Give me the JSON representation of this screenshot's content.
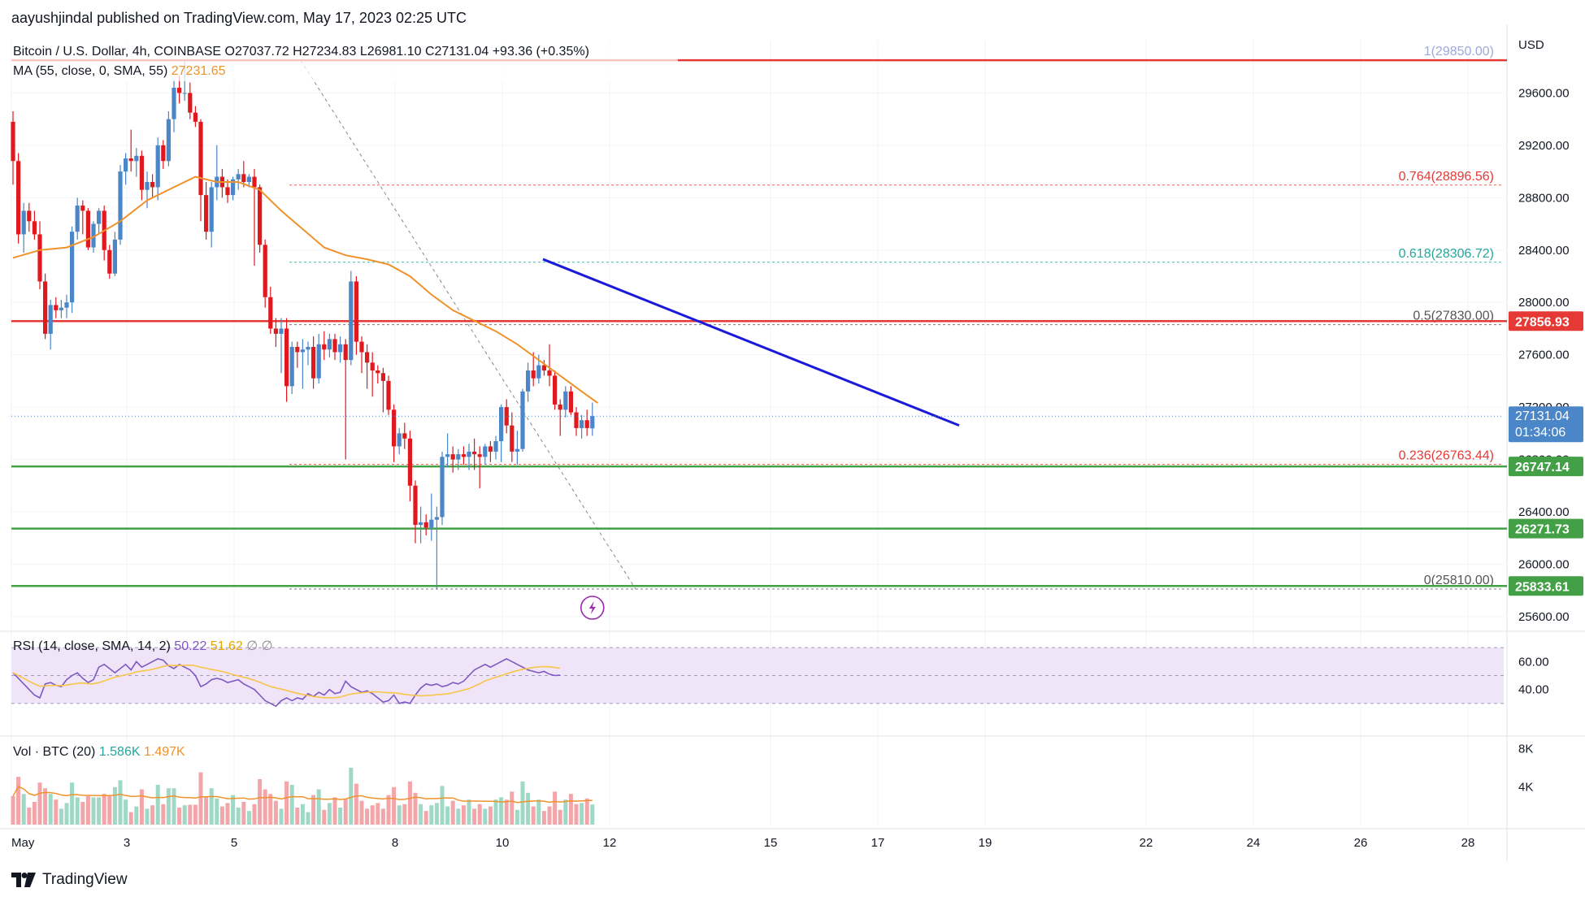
{
  "header": {
    "published": "aayushjindal published on TradingView.com, May 17, 2023 02:25 UTC"
  },
  "brand": {
    "name": "TradingView",
    "icon": "tradingview-logo-icon"
  },
  "symbol": {
    "title": "Bitcoin / U.S. Dollar, 4h, COINBASE",
    "ohlc": "O27037.72  H27234.83  L26981.10  C27131.04  +93.36 (+0.35%)",
    "currency": "USD"
  },
  "indicators": {
    "ma": {
      "label": "MA (55, close, 0, SMA, 55)",
      "value": "27231.65",
      "color": "#f0922b"
    },
    "rsi": {
      "label": "RSI (14, close, SMA, 14, 2)",
      "value": "50.22",
      "sma_value": "51.62",
      "extra": "∅  ∅",
      "color": "#7e57c2",
      "sma_color": "#f7c548"
    },
    "vol": {
      "label": "Vol · BTC (20)",
      "value": "1.586K",
      "ma_value": "1.497K"
    }
  },
  "price_axis": {
    "ticks": [
      "29600.00",
      "29200.00",
      "28800.00",
      "28400.00",
      "28000.00",
      "27600.00",
      "27200.00",
      "26800.00",
      "26400.00",
      "26000.00",
      "25600.00"
    ],
    "current_price": "27131.04",
    "countdown": "01:34:06"
  },
  "rsi_axis": {
    "ticks": [
      "60.00",
      "40.00"
    ]
  },
  "vol_axis": {
    "ticks": [
      "8K",
      "4K"
    ]
  },
  "time_axis": {
    "labels": [
      "May",
      "3",
      "5",
      "8",
      "10",
      "12",
      "15",
      "17",
      "19",
      "22",
      "24",
      "26",
      "28"
    ]
  },
  "levels": {
    "resistance": [
      {
        "price": 29850,
        "color": "#e53935"
      },
      {
        "price": 27856.93,
        "label": "27856.93",
        "color": "#e53935"
      }
    ],
    "support": [
      {
        "price": 26747.14,
        "label": "26747.14",
        "color": "#43a047"
      },
      {
        "price": 26271.73,
        "label": "26271.73",
        "color": "#43a047"
      },
      {
        "price": 25833.61,
        "label": "25833.61",
        "color": "#43a047"
      }
    ]
  },
  "fibonacci": [
    {
      "label": "1(29850.00)",
      "price": 29850,
      "color": "#9fa8da"
    },
    {
      "label": "0.764(28896.56)",
      "price": 28896.56,
      "color": "#e53935"
    },
    {
      "label": "0.618(28306.72)",
      "price": 28306.72,
      "color": "#26a69a"
    },
    {
      "label": "0.5(27830.00)",
      "price": 27830,
      "color": "#555555"
    },
    {
      "label": "0.236(26763.44)",
      "price": 26763.44,
      "color": "#e53935"
    },
    {
      "label": "0(25810.00)",
      "price": 25810,
      "color": "#555555"
    }
  ],
  "colors": {
    "up": "#4a86c8",
    "down": "#e0191f",
    "trendline": "#1a1ad8",
    "rsi_band": "#f0e4f9"
  },
  "chart_data": {
    "type": "candlestick",
    "timeframe": "4h",
    "x_range": [
      "2023-05-01",
      "2023-05-28"
    ],
    "ylim": [
      25500,
      30000
    ],
    "candles": [
      [
        29380,
        29460,
        28900,
        29080
      ],
      [
        29080,
        29140,
        28450,
        28520
      ],
      [
        28520,
        28760,
        28380,
        28700
      ],
      [
        28700,
        28760,
        28540,
        28620
      ],
      [
        28620,
        28700,
        28480,
        28520
      ],
      [
        28520,
        28620,
        28100,
        28160
      ],
      [
        28160,
        28220,
        27720,
        27760
      ],
      [
        27760,
        28020,
        27640,
        27980
      ],
      [
        27980,
        28040,
        27880,
        27940
      ],
      [
        27940,
        28020,
        27880,
        27960
      ],
      [
        27960,
        28060,
        27880,
        28000
      ],
      [
        28000,
        28580,
        27920,
        28540
      ],
      [
        28540,
        28800,
        28480,
        28740
      ],
      [
        28740,
        28780,
        28520,
        28700
      ],
      [
        28700,
        28720,
        28400,
        28420
      ],
      [
        28420,
        28620,
        28380,
        28600
      ],
      [
        28600,
        28720,
        28520,
        28700
      ],
      [
        28700,
        28740,
        28320,
        28400
      ],
      [
        28400,
        28440,
        28180,
        28220
      ],
      [
        28220,
        28540,
        28200,
        28480
      ],
      [
        28480,
        29050,
        28440,
        29000
      ],
      [
        29000,
        29140,
        28900,
        29100
      ],
      [
        29100,
        29320,
        29000,
        29080
      ],
      [
        29080,
        29180,
        28960,
        29120
      ],
      [
        29120,
        29160,
        28780,
        28860
      ],
      [
        28860,
        29000,
        28720,
        28920
      ],
      [
        28920,
        28980,
        28800,
        28880
      ],
      [
        28880,
        29260,
        28780,
        29200
      ],
      [
        29200,
        29240,
        29020,
        29080
      ],
      [
        29080,
        29460,
        29040,
        29400
      ],
      [
        29400,
        29700,
        29300,
        29640
      ],
      [
        29640,
        29730,
        29520,
        29600
      ],
      [
        29600,
        29850,
        29540,
        29600
      ],
      [
        29600,
        29680,
        29400,
        29450
      ],
      [
        29450,
        29500,
        29340,
        29380
      ],
      [
        29380,
        29400,
        28620,
        28820
      ],
      [
        28820,
        28920,
        28480,
        28540
      ],
      [
        28540,
        28920,
        28420,
        28880
      ],
      [
        28880,
        29200,
        28780,
        28960
      ],
      [
        28960,
        29020,
        28800,
        28880
      ],
      [
        28880,
        28940,
        28760,
        28820
      ],
      [
        28820,
        28960,
        28780,
        28940
      ],
      [
        28940,
        29020,
        28860,
        28980
      ],
      [
        28980,
        29080,
        28880,
        28920
      ],
      [
        28920,
        28980,
        28880,
        28960
      ],
      [
        28960,
        29020,
        28280,
        28880
      ],
      [
        28880,
        28900,
        28380,
        28440
      ],
      [
        28440,
        28480,
        27960,
        28040
      ],
      [
        28040,
        28120,
        27760,
        27800
      ],
      [
        27800,
        27880,
        27660,
        27760
      ],
      [
        27760,
        27880,
        27460,
        27800
      ],
      [
        27800,
        27880,
        27240,
        27360
      ],
      [
        27360,
        27700,
        27300,
        27660
      ],
      [
        27660,
        27700,
        27500,
        27620
      ],
      [
        27620,
        27720,
        27340,
        27640
      ],
      [
        27640,
        27700,
        27520,
        27660
      ],
      [
        27660,
        27740,
        27340,
        27420
      ],
      [
        27420,
        27760,
        27380,
        27680
      ],
      [
        27680,
        27780,
        27560,
        27640
      ],
      [
        27640,
        27760,
        27580,
        27720
      ],
      [
        27720,
        27760,
        27560,
        27620
      ],
      [
        27620,
        27740,
        27540,
        27680
      ],
      [
        27680,
        27720,
        26800,
        27560
      ],
      [
        27560,
        28240,
        27520,
        28160
      ],
      [
        28160,
        28200,
        27600,
        27700
      ],
      [
        27700,
        27740,
        27460,
        27620
      ],
      [
        27620,
        27680,
        27340,
        27540
      ],
      [
        27540,
        27620,
        27280,
        27480
      ],
      [
        27480,
        27520,
        27380,
        27460
      ],
      [
        27460,
        27500,
        27160,
        27400
      ],
      [
        27400,
        27440,
        27140,
        27180
      ],
      [
        27180,
        27220,
        26780,
        26900
      ],
      [
        26900,
        27040,
        26840,
        27000
      ],
      [
        27000,
        27080,
        26880,
        26960
      ],
      [
        26960,
        27020,
        26480,
        26600
      ],
      [
        26600,
        26640,
        26160,
        26300
      ],
      [
        26300,
        26440,
        26160,
        26320
      ],
      [
        26320,
        26380,
        26220,
        26280
      ],
      [
        26280,
        26540,
        26180,
        26340
      ],
      [
        26340,
        26440,
        25810,
        26360
      ],
      [
        26360,
        26860,
        26300,
        26820
      ],
      [
        26820,
        27000,
        26740,
        26840
      ],
      [
        26840,
        26900,
        26700,
        26800
      ],
      [
        26800,
        26880,
        26720,
        26840
      ],
      [
        26840,
        26900,
        26760,
        26820
      ],
      [
        26820,
        26920,
        26720,
        26860
      ],
      [
        26860,
        26960,
        26720,
        26840
      ],
      [
        26840,
        26900,
        26580,
        26820
      ],
      [
        26820,
        26920,
        26760,
        26900
      ],
      [
        26900,
        26940,
        26780,
        26860
      ],
      [
        26860,
        26980,
        26800,
        26940
      ],
      [
        26940,
        27220,
        26780,
        27200
      ],
      [
        27200,
        27260,
        27000,
        27060
      ],
      [
        27060,
        27160,
        26780,
        26860
      ],
      [
        26860,
        27020,
        26760,
        26880
      ],
      [
        26880,
        27340,
        26860,
        27320
      ],
      [
        27320,
        27540,
        27240,
        27480
      ],
      [
        27480,
        27620,
        27360,
        27420
      ],
      [
        27420,
        27600,
        27380,
        27520
      ],
      [
        27520,
        27560,
        27440,
        27480
      ],
      [
        27480,
        27680,
        27360,
        27440
      ],
      [
        27440,
        27480,
        27180,
        27220
      ],
      [
        27220,
        27260,
        26980,
        27180
      ],
      [
        27180,
        27360,
        27120,
        27320
      ],
      [
        27320,
        27360,
        27140,
        27160
      ],
      [
        27160,
        27200,
        26980,
        27040
      ],
      [
        27040,
        27140,
        26960,
        27100
      ],
      [
        27100,
        27180,
        26980,
        27040
      ],
      [
        27037.72,
        27234.83,
        26981.1,
        27131.04
      ]
    ],
    "moving_average": [
      [
        0,
        28340
      ],
      [
        5,
        28400
      ],
      [
        10,
        28420
      ],
      [
        15,
        28500
      ],
      [
        20,
        28620
      ],
      [
        25,
        28780
      ],
      [
        30,
        28880
      ],
      [
        34,
        28960
      ],
      [
        38,
        28920
      ],
      [
        42,
        28920
      ],
      [
        46,
        28860
      ],
      [
        50,
        28700
      ],
      [
        54,
        28560
      ],
      [
        58,
        28420
      ],
      [
        62,
        28360
      ],
      [
        66,
        28330
      ],
      [
        70,
        28290
      ],
      [
        74,
        28200
      ],
      [
        78,
        28060
      ],
      [
        82,
        27940
      ],
      [
        86,
        27860
      ],
      [
        90,
        27780
      ],
      [
        94,
        27680
      ],
      [
        98,
        27560
      ],
      [
        102,
        27440
      ],
      [
        106,
        27320
      ],
      [
        109,
        27231.65
      ]
    ],
    "trendline": {
      "from": [
        "2023-05-10",
        28330
      ],
      "to": [
        "2023-05-18",
        27060
      ]
    },
    "fib_swing": {
      "from": [
        "2023-05-06",
        29850
      ],
      "to": [
        "2023-05-12",
        25810
      ]
    },
    "rsi": [
      52,
      48,
      44,
      40,
      36,
      34,
      44,
      45,
      43,
      42,
      47,
      50,
      52,
      48,
      45,
      47,
      56,
      58,
      55,
      52,
      55,
      58,
      54,
      60,
      56,
      58,
      60,
      62,
      61,
      57,
      55,
      58,
      56,
      54,
      50,
      42,
      44,
      47,
      48,
      47,
      45,
      46,
      47,
      44,
      42,
      40,
      36,
      32,
      30,
      28,
      32,
      34,
      32,
      34,
      33,
      37,
      35,
      38,
      36,
      40,
      37,
      38,
      46,
      42,
      40,
      38,
      39,
      37,
      34,
      31,
      32,
      36,
      30,
      31,
      30,
      36,
      41,
      44,
      43,
      44,
      42,
      43,
      45,
      44,
      46,
      50,
      54,
      56,
      58,
      56,
      58,
      60,
      62,
      60,
      58,
      56,
      54,
      53,
      52,
      53,
      51,
      50,
      50.22
    ]
  }
}
